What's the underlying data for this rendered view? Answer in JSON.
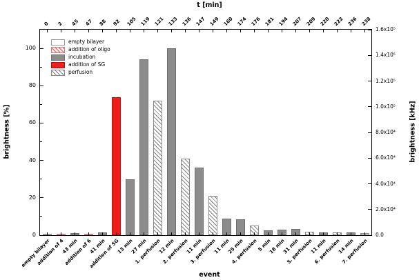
{
  "chart_data": {
    "type": "bar",
    "top_axis_label": "t [min]",
    "xlabel": "event",
    "ylabel_left": "brightness [%]",
    "ylabel_right": "brightness [kHz]",
    "left_ticks": [
      0,
      20,
      40,
      60,
      80,
      100
    ],
    "left_axis_max": 110,
    "right_tick_labels": [
      "1.6x10⁵",
      "1.4x10⁵",
      "1.2x10⁵",
      "1.0x10⁵",
      "8.0x10⁴",
      "6.0x10⁴",
      "4.0x10⁴",
      "2.0x10⁴",
      "0.0"
    ],
    "t_ticks": [
      0,
      2,
      45,
      47,
      88,
      92,
      105,
      119,
      121,
      133,
      136,
      147,
      149,
      160,
      174,
      176,
      181,
      194,
      207,
      209,
      220,
      222,
      236,
      238
    ],
    "bars": [
      {
        "label": "empty bilayer",
        "t": 0,
        "value": 0.5,
        "style": "empty"
      },
      {
        "label": "addition of 4",
        "t": 2,
        "value": 0.5,
        "style": "oligo"
      },
      {
        "label": "43 min",
        "t": 45,
        "value": 1,
        "style": "incubation"
      },
      {
        "label": "addition of 6",
        "t": 47,
        "value": 0.5,
        "style": "oligo"
      },
      {
        "label": "41 min",
        "t": 88,
        "value": 1.5,
        "style": "incubation"
      },
      {
        "label": "addition of SG",
        "t": 92,
        "value": 74,
        "style": "sg"
      },
      {
        "label": "13 min",
        "t": 105,
        "value": 30,
        "style": "incubation"
      },
      {
        "label": "27 min",
        "t": 119,
        "value": 94,
        "style": "incubation"
      },
      {
        "label": "1. perfusion",
        "t": 121,
        "value": 72,
        "style": "perfusion"
      },
      {
        "label": "12 min",
        "t": 133,
        "value": 100,
        "style": "incubation"
      },
      {
        "label": "2. perfusion",
        "t": 136,
        "value": 41,
        "style": "perfusion"
      },
      {
        "label": "11 min",
        "t": 147,
        "value": 36,
        "style": "incubation"
      },
      {
        "label": "3. perfusion",
        "t": 149,
        "value": 21,
        "style": "perfusion"
      },
      {
        "label": "11 min",
        "t": 160,
        "value": 9,
        "style": "incubation"
      },
      {
        "label": "25 min",
        "t": 174,
        "value": 8.5,
        "style": "incubation"
      },
      {
        "label": "4. perfusion",
        "t": 176,
        "value": 5,
        "style": "perfusion"
      },
      {
        "label": "5 min",
        "t": 181,
        "value": 2.5,
        "style": "incubation"
      },
      {
        "label": "18 min",
        "t": 194,
        "value": 3,
        "style": "incubation"
      },
      {
        "label": "31 min",
        "t": 207,
        "value": 3.5,
        "style": "incubation"
      },
      {
        "label": "5. perfusion",
        "t": 209,
        "value": 2,
        "style": "perfusion"
      },
      {
        "label": "11 min",
        "t": 220,
        "value": 1.5,
        "style": "incubation"
      },
      {
        "label": "6. perfusion",
        "t": 222,
        "value": 1.5,
        "style": "perfusion"
      },
      {
        "label": "14 min",
        "t": 236,
        "value": 1.5,
        "style": "incubation"
      },
      {
        "label": "7. perfusion",
        "t": 238,
        "value": 1,
        "style": "perfusion"
      }
    ],
    "legend": [
      {
        "label": "empty bilayer",
        "style": "empty"
      },
      {
        "label": "addition of oligo",
        "style": "oligo"
      },
      {
        "label": "incubation",
        "style": "incubation"
      },
      {
        "label": "addition of SG",
        "style": "sg"
      },
      {
        "label": "perfusion",
        "style": "perfusion"
      }
    ],
    "colors": {
      "incubation_gray": "#8c8c8c",
      "sg_red": "#ee1c1c",
      "oligo_hatch_red": "#d63e3e",
      "frame_black": "#000000"
    }
  }
}
